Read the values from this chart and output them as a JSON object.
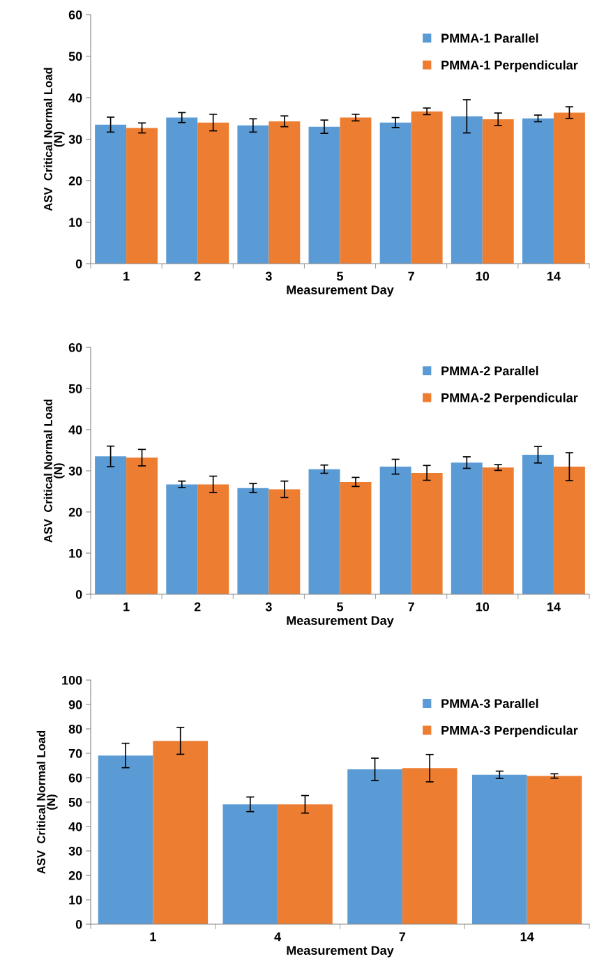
{
  "chart_data": [
    {
      "type": "bar",
      "xlabel": "Measurement Day",
      "ylabel": "ASV  Critical Normal Load\n(N)",
      "categories": [
        "1",
        "2",
        "3",
        "5",
        "7",
        "10",
        "14"
      ],
      "ylim": [
        0,
        60
      ],
      "yticks": [
        0,
        10,
        20,
        30,
        40,
        50,
        60
      ],
      "legend": "top right",
      "grid": false,
      "series": [
        {
          "name": "PMMA-1 Parallel",
          "color": "#5b9bd5",
          "values": [
            33.5,
            35.2,
            33.3,
            33,
            34,
            35.5,
            35
          ],
          "errors": [
            1.8,
            1.2,
            1.6,
            1.6,
            1.2,
            4,
            0.8
          ]
        },
        {
          "name": "PMMA-1 Perpendicular",
          "color": "#ed7d31",
          "values": [
            32.7,
            34,
            34.3,
            35.2,
            36.7,
            34.8,
            36.4
          ],
          "errors": [
            1.2,
            2,
            1.3,
            0.8,
            0.8,
            1.5,
            1.4
          ]
        }
      ]
    },
    {
      "type": "bar",
      "xlabel": "Measurement Day",
      "ylabel": "ASV  Critical Normal Load\n(N)",
      "categories": [
        "1",
        "2",
        "3",
        "5",
        "7",
        "10",
        "14"
      ],
      "ylim": [
        0,
        60
      ],
      "yticks": [
        0,
        10,
        20,
        30,
        40,
        50,
        60
      ],
      "legend": "top right",
      "grid": false,
      "series": [
        {
          "name": "PMMA-2 Parallel",
          "color": "#5b9bd5",
          "values": [
            33.5,
            26.7,
            25.8,
            30.4,
            31,
            32,
            33.9
          ],
          "errors": [
            2.5,
            0.8,
            1.1,
            1,
            1.8,
            1.4,
            2
          ]
        },
        {
          "name": "PMMA-2 Perpendicular",
          "color": "#ed7d31",
          "values": [
            33.2,
            26.7,
            25.5,
            27.3,
            29.5,
            30.8,
            31
          ],
          "errors": [
            2,
            2,
            2,
            1.1,
            1.8,
            0.7,
            3.4
          ]
        }
      ]
    },
    {
      "type": "bar",
      "xlabel": "Measurement Day",
      "ylabel": "ASV  Critical Normal Load\n(N)",
      "categories": [
        "1",
        "4",
        "7",
        "14"
      ],
      "ylim": [
        0,
        100
      ],
      "yticks": [
        0,
        10,
        20,
        30,
        40,
        50,
        60,
        70,
        80,
        90,
        100
      ],
      "legend": "top right",
      "grid": false,
      "series": [
        {
          "name": "PMMA-3 Parallel",
          "color": "#5b9bd5",
          "values": [
            69.1,
            49.1,
            63.4,
            61.2
          ],
          "errors": [
            5,
            3,
            4.6,
            1.5
          ]
        },
        {
          "name": "PMMA-3 Perpendicular",
          "color": "#ed7d31",
          "values": [
            75.1,
            49.1,
            63.9,
            60.7
          ],
          "errors": [
            5.5,
            3.6,
            5.6,
            0.9
          ]
        }
      ]
    }
  ]
}
